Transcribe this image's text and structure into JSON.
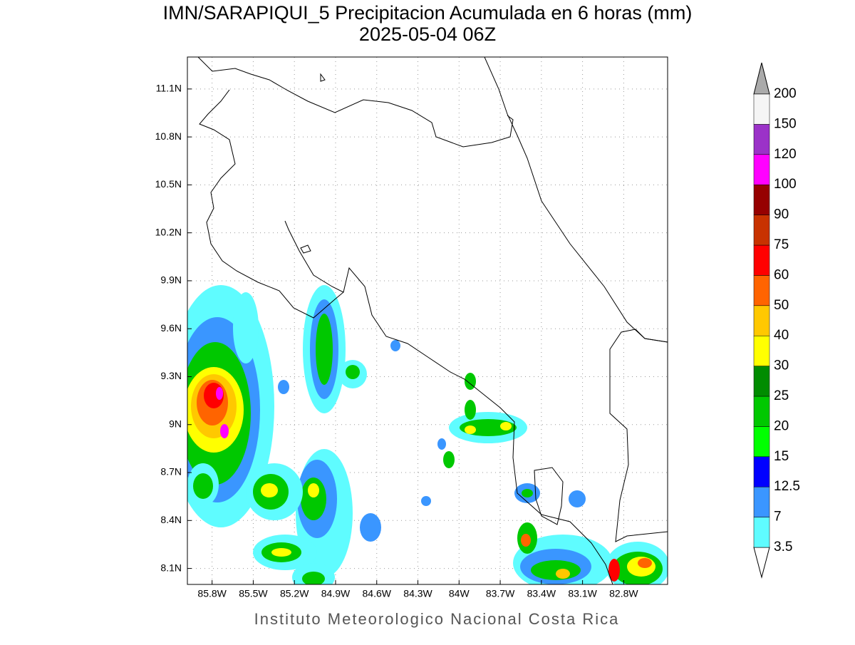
{
  "title": "IMN/SARAPIQUI_5 Precipitacion Acumulada en 6 horas (mm)",
  "subtitle": "2025-05-04 06Z",
  "map": {
    "xlim": [
      -85.98,
      -82.48
    ],
    "ylim": [
      8.0,
      11.3
    ],
    "grid": true,
    "xticks": [
      {
        "value": -85.8,
        "label": "85.8W"
      },
      {
        "value": -85.5,
        "label": "85.5W"
      },
      {
        "value": -85.2,
        "label": "85.2W"
      },
      {
        "value": -84.9,
        "label": "84.9W"
      },
      {
        "value": -84.6,
        "label": "84.6W"
      },
      {
        "value": -84.3,
        "label": "84.3W"
      },
      {
        "value": -84.0,
        "label": "84W"
      },
      {
        "value": -83.7,
        "label": "83.7W"
      },
      {
        "value": -83.4,
        "label": "83.4W"
      },
      {
        "value": -83.1,
        "label": "83.1W"
      },
      {
        "value": -82.8,
        "label": "82.8W"
      }
    ],
    "yticks": [
      {
        "value": 8.1,
        "label": "8.1N"
      },
      {
        "value": 8.4,
        "label": "8.4N"
      },
      {
        "value": 8.7,
        "label": "8.7N"
      },
      {
        "value": 9.0,
        "label": "9N"
      },
      {
        "value": 9.3,
        "label": "9.3N"
      },
      {
        "value": 9.6,
        "label": "9.6N"
      },
      {
        "value": 9.9,
        "label": "9.9N"
      },
      {
        "value": 10.2,
        "label": "10.2N"
      },
      {
        "value": 10.5,
        "label": "10.5N"
      },
      {
        "value": 10.8,
        "label": "10.8N"
      },
      {
        "value": 11.1,
        "label": "11.1N"
      }
    ]
  },
  "colorbar": {
    "levels": [
      3.5,
      7,
      12.5,
      15,
      20,
      25,
      30,
      40,
      50,
      60,
      75,
      90,
      100,
      120,
      150,
      200
    ],
    "colors": [
      "#5ffcff",
      "#3a96ff",
      "#0000ff",
      "#00ff00",
      "#00c800",
      "#008c00",
      "#ffff00",
      "#ffc800",
      "#ff6400",
      "#ff0000",
      "#c83200",
      "#960000",
      "#ff00ff",
      "#9b32c8",
      "#f5f5f5"
    ],
    "under_color": "#ffffff",
    "over_color": "#aaaaaa"
  },
  "footer": "Instituto Meteorologico Nacional Costa Rica"
}
